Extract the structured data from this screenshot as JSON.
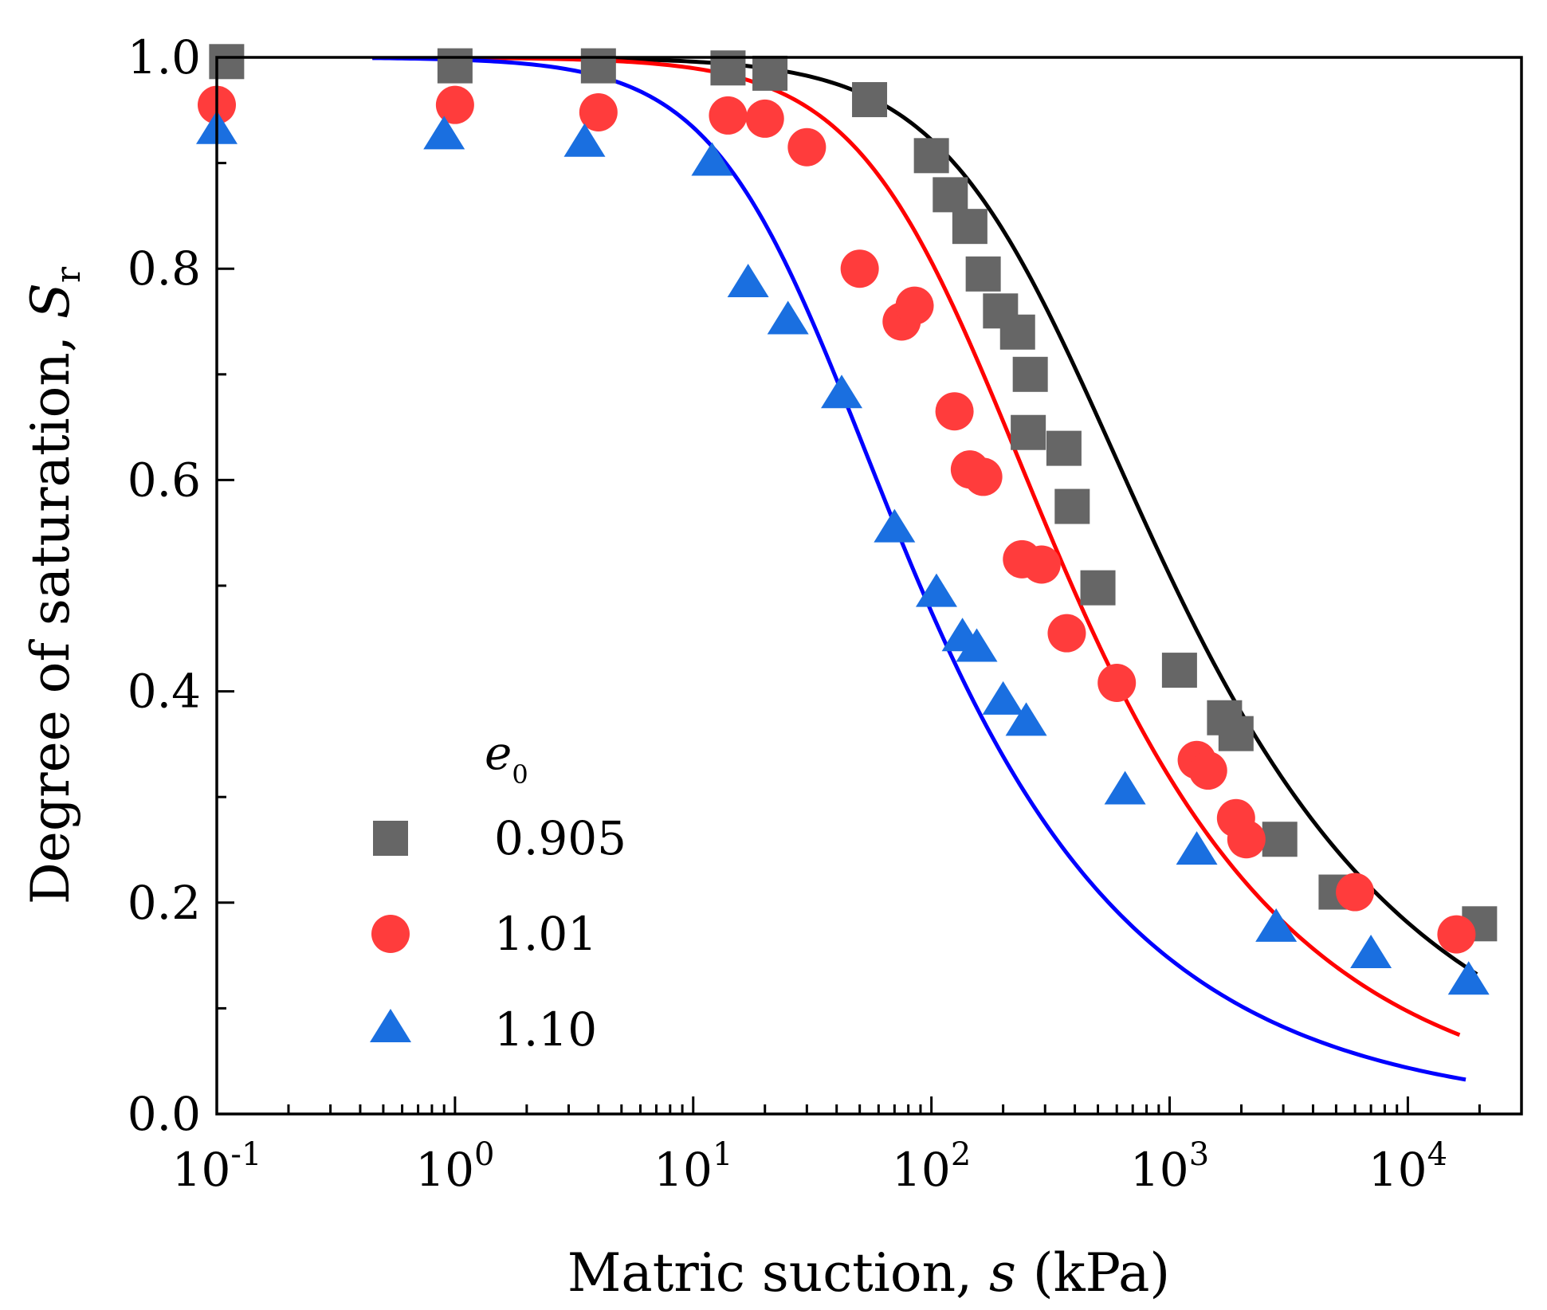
{
  "chart_data": {
    "type": "scatter",
    "title": "",
    "xlabel": {
      "prefix": "Matric suction, ",
      "var": "s",
      "suffix": " (kPa)"
    },
    "ylabel": {
      "prefix": "Degree of saturation, ",
      "var": "S",
      "sub": "r"
    },
    "xscale": "log",
    "xlim": [
      0.1,
      30000
    ],
    "ylim": [
      0.0,
      1.0
    ],
    "x_ticks": [
      {
        "value": 0.1,
        "base": "10",
        "exp": "-1"
      },
      {
        "value": 1,
        "base": "10",
        "exp": "0"
      },
      {
        "value": 10,
        "base": "10",
        "exp": "1"
      },
      {
        "value": 100,
        "base": "10",
        "exp": "2"
      },
      {
        "value": 1000,
        "base": "10",
        "exp": "3"
      },
      {
        "value": 10000,
        "base": "10",
        "exp": "4"
      }
    ],
    "y_ticks": [
      {
        "value": 0.0,
        "label": "0.0"
      },
      {
        "value": 0.2,
        "label": "0.2"
      },
      {
        "value": 0.4,
        "label": "0.4"
      },
      {
        "value": 0.6,
        "label": "0.6"
      },
      {
        "value": 0.8,
        "label": "0.8"
      },
      {
        "value": 1.0,
        "label": "1.0"
      }
    ],
    "legend": {
      "title_var": "e",
      "title_sub": "0",
      "placement": "lower-left"
    },
    "series": [
      {
        "name": "0.905",
        "marker": "square",
        "color": "#666666",
        "fit_color": "#000000",
        "points": [
          [
            0.11,
            0.996
          ],
          [
            1.0,
            0.992
          ],
          [
            4.0,
            0.992
          ],
          [
            14,
            0.99
          ],
          [
            21,
            0.985
          ],
          [
            55,
            0.96
          ],
          [
            100,
            0.907
          ],
          [
            120,
            0.87
          ],
          [
            145,
            0.84
          ],
          [
            165,
            0.795
          ],
          [
            195,
            0.76
          ],
          [
            230,
            0.74
          ],
          [
            260,
            0.7
          ],
          [
            255,
            0.645
          ],
          [
            360,
            0.63
          ],
          [
            390,
            0.575
          ],
          [
            500,
            0.498
          ],
          [
            1100,
            0.42
          ],
          [
            1700,
            0.375
          ],
          [
            1900,
            0.36
          ],
          [
            2900,
            0.26
          ],
          [
            5000,
            0.21
          ],
          [
            20000,
            0.18
          ]
        ],
        "fit": {
          "x_range": [
            0.45,
            19500
          ],
          "alpha": 0.0037,
          "n": 1.35,
          "m": 0.35
        }
      },
      {
        "name": "1.01",
        "marker": "circle",
        "color": "#ff3c3c",
        "fit_color": "#ff0000",
        "points": [
          [
            0.1,
            0.955
          ],
          [
            1.0,
            0.955
          ],
          [
            4.0,
            0.948
          ],
          [
            14,
            0.945
          ],
          [
            20,
            0.942
          ],
          [
            30,
            0.915
          ],
          [
            50,
            0.8
          ],
          [
            75,
            0.75
          ],
          [
            85,
            0.765
          ],
          [
            125,
            0.665
          ],
          [
            145,
            0.61
          ],
          [
            165,
            0.603
          ],
          [
            240,
            0.525
          ],
          [
            290,
            0.52
          ],
          [
            370,
            0.455
          ],
          [
            600,
            0.408
          ],
          [
            1300,
            0.335
          ],
          [
            1450,
            0.325
          ],
          [
            1900,
            0.28
          ],
          [
            2100,
            0.26
          ],
          [
            6000,
            0.21
          ],
          [
            16000,
            0.17
          ]
        ],
        "fit": {
          "x_range": [
            0.45,
            16500
          ],
          "alpha": 0.0087,
          "n": 1.45,
          "m": 0.36
        }
      },
      {
        "name": "1.10",
        "marker": "triangle",
        "color": "#1a6fe0",
        "fit_color": "#0000ff",
        "points": [
          [
            0.1,
            0.93
          ],
          [
            0.9,
            0.925
          ],
          [
            3.5,
            0.918
          ],
          [
            12,
            0.9
          ],
          [
            17,
            0.785
          ],
          [
            25,
            0.75
          ],
          [
            42,
            0.68
          ],
          [
            70,
            0.553
          ],
          [
            105,
            0.492
          ],
          [
            135,
            0.45
          ],
          [
            155,
            0.44
          ],
          [
            200,
            0.39
          ],
          [
            250,
            0.37
          ],
          [
            650,
            0.305
          ],
          [
            1300,
            0.248
          ],
          [
            2800,
            0.175
          ],
          [
            7000,
            0.15
          ],
          [
            18000,
            0.125
          ]
        ],
        "fit": {
          "x_range": [
            0.45,
            17500
          ],
          "alpha": 0.038,
          "n": 1.55,
          "m": 0.34
        }
      }
    ]
  }
}
